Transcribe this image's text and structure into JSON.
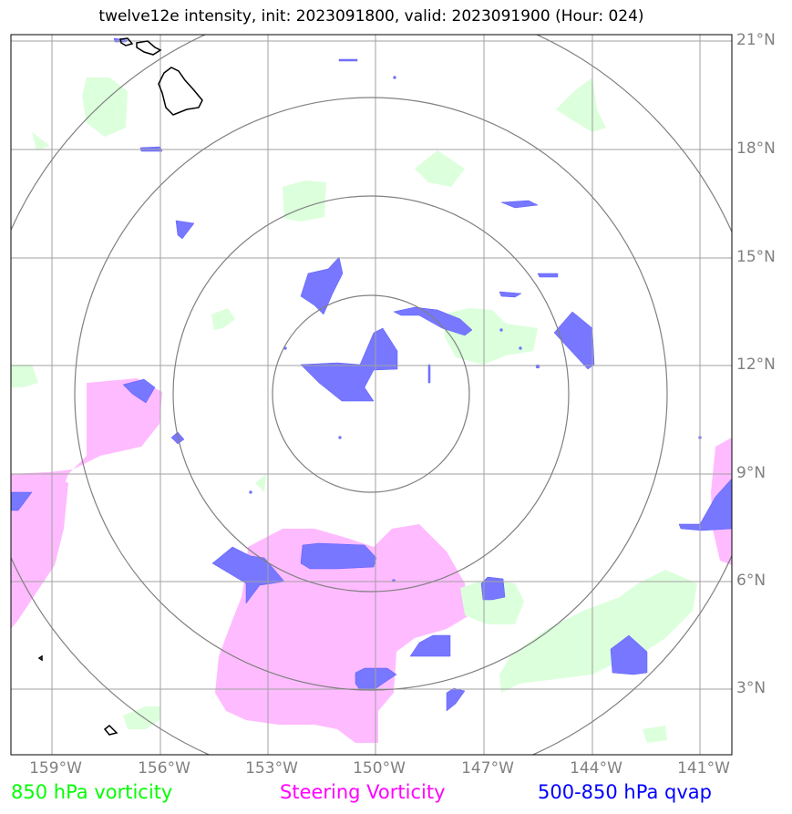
{
  "title": "twelve12e intensity, init: 2023091800, valid: 2023091900 (Hour: 024)",
  "lat_labels": [
    "21°N",
    "18°N",
    "15°N",
    "12°N",
    "9°N",
    "6°N",
    "3°N"
  ],
  "lon_labels": [
    "159°W",
    "156°W",
    "153°W",
    "150°W",
    "147°W",
    "144°W",
    "141°W"
  ],
  "legend": {
    "vort850": "850 hPa vorticity",
    "steering": "Steering Vorticity",
    "qvap": "500-850 hPa qvap"
  },
  "colors": {
    "vort850": "#00ff00",
    "vort850_fill": "#dcffdc",
    "steering": "#ff00ff",
    "steering_fill": "#ffbbff",
    "qvap": "#0000ff",
    "qvap_fill": "#7777ff",
    "grid": "#a0a0a0",
    "range_rings": "#808080",
    "coastline": "#000000"
  }
}
